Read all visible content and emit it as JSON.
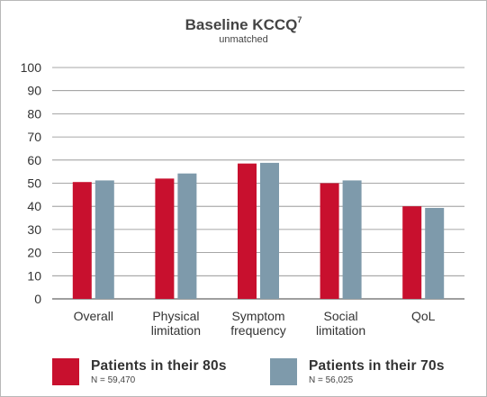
{
  "chart_data": {
    "type": "bar",
    "title": "Baseline KCCQ",
    "title_superscript": "7",
    "subtitle": "unmatched",
    "categories": [
      [
        "Overall"
      ],
      [
        "Physical",
        "limitation"
      ],
      [
        "Symptom",
        "frequency"
      ],
      [
        "Social",
        "limitation"
      ],
      [
        "QoL"
      ]
    ],
    "series": [
      {
        "name": "Patients in their 80s",
        "n_label": "N = 59,470",
        "color": "#c8102e",
        "values": [
          50.5,
          52,
          58.5,
          50,
          40
        ]
      },
      {
        "name": "Patients in their 70s",
        "n_label": "N = 56,025",
        "color": "#7e9aab",
        "values": [
          51.2,
          54.2,
          58.8,
          51.2,
          39.3
        ]
      }
    ],
    "ylim": [
      0,
      100
    ],
    "yticks": [
      0,
      10,
      20,
      30,
      40,
      50,
      60,
      70,
      80,
      90,
      100
    ],
    "grid": true,
    "legend_position": "bottom"
  }
}
